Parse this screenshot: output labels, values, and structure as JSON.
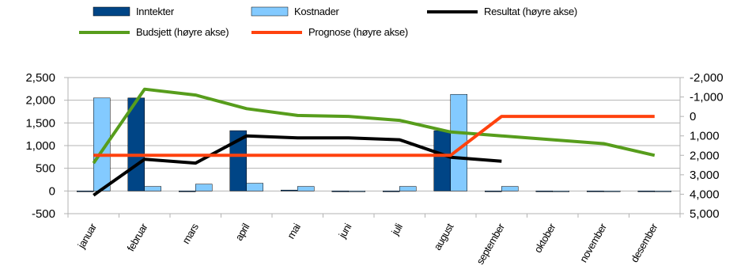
{
  "chart_data": {
    "type": "bar",
    "categories": [
      "januar",
      "februar",
      "mars",
      "april",
      "mai",
      "juni",
      "juli",
      "august",
      "september",
      "oktober",
      "november",
      "desember"
    ],
    "series": [
      {
        "name": "Inntekter",
        "type": "bar",
        "axis": "left",
        "color": "#004586",
        "values": [
          0,
          2050,
          0,
          1330,
          20,
          -5,
          0,
          1330,
          0,
          0,
          0,
          0
        ]
      },
      {
        "name": "Kostnader",
        "type": "bar",
        "axis": "left",
        "color": "#83caff",
        "values": [
          2050,
          100,
          150,
          170,
          100,
          0,
          100,
          2130,
          100,
          0,
          0,
          0
        ]
      },
      {
        "name": "Resultat (høyre akse)",
        "type": "line",
        "axis": "right",
        "color": "#000000",
        "values": [
          4050,
          2200,
          2400,
          1000,
          1100,
          1100,
          1200,
          2100,
          2300,
          null,
          null,
          null
        ]
      },
      {
        "name": "Budsjett (høyre akse)",
        "type": "line",
        "axis": "right",
        "color": "#579d1c",
        "values": [
          2400,
          -1400,
          -1100,
          -400,
          -50,
          0,
          200,
          800,
          1000,
          1200,
          1400,
          2000
        ]
      },
      {
        "name": "Prognose (høyre akse)",
        "type": "line",
        "axis": "right",
        "color": "#ff420e",
        "values": [
          2000,
          2000,
          2000,
          2000,
          2000,
          2000,
          2000,
          2000,
          0,
          0,
          0,
          0
        ]
      }
    ],
    "left_axis": {
      "min": -500,
      "max": 2500,
      "step": 500,
      "tick_labels": [
        "-500",
        "0",
        "500",
        "1,000",
        "1,500",
        "2,000",
        "2,500"
      ]
    },
    "right_axis": {
      "min": -2000,
      "max": 5000,
      "step": 1000,
      "reversed": true,
      "tick_labels": [
        "-2,000",
        "-1,000",
        "0",
        "1,000",
        "2,000",
        "3,000",
        "4,000",
        "5,000"
      ]
    },
    "legend_position": "top",
    "grid": true
  }
}
